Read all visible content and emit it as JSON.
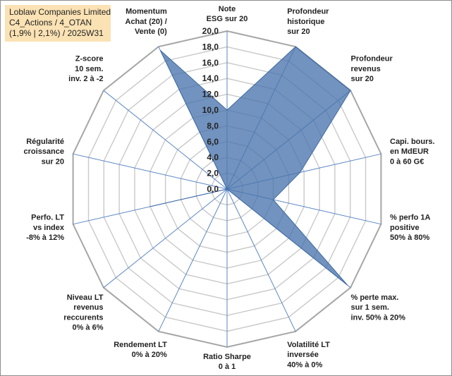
{
  "title_box": {
    "line1": "Loblaw Companies Limited",
    "line2": "C4_Actions / 4_OTAN",
    "line3": "(1,9% | 2,1%) / 2025W31"
  },
  "chart_data": {
    "type": "radar",
    "axes": [
      {
        "label": [
          "Note",
          "ESG sur 20"
        ],
        "value": 10.0
      },
      {
        "label": [
          "Profondeur",
          "historique",
          "sur 20"
        ],
        "value": 20.0
      },
      {
        "label": [
          "Profondeur",
          "revenus",
          "sur 20"
        ],
        "value": 20.0
      },
      {
        "label": [
          "Capi. bours.",
          "en MdEUR",
          "0 à 60 G€"
        ],
        "value": 9.5
      },
      {
        "label": [
          "% perfo 1A",
          "positive",
          "50% à 80%"
        ],
        "value": 6.0
      },
      {
        "label": [
          "% perte max.",
          "sur 1 sem.",
          "inv. 50% à 20%"
        ],
        "value": 19.5
      },
      {
        "label": [
          "Volatilité LT",
          "inversée",
          "40% à 0%"
        ],
        "value": 0.0
      },
      {
        "label": [
          "Ratio Sharpe",
          "0 à 1"
        ],
        "value": 0.0
      },
      {
        "label": [
          "Rendement LT",
          "0% à 20%"
        ],
        "value": 0.0
      },
      {
        "label": [
          "Niveau LT",
          "revenus",
          "reccurents",
          "0% à 6%"
        ],
        "value": 0.0
      },
      {
        "label": [
          "Perfo. LT",
          "vs index",
          "-8% à 12%"
        ],
        "value": 10.0
      },
      {
        "label": [
          "Régularité",
          "croissance",
          "sur 20"
        ],
        "value": 0.0
      },
      {
        "label": [
          "Z-score",
          "10 sem.",
          "inv. 2 à -2"
        ],
        "value": 0.0
      },
      {
        "label": [
          "Momentum",
          "Achat (20) /",
          "Vente (0)"
        ],
        "value": 19.5
      }
    ],
    "rlim": [
      0,
      20
    ],
    "ticks": [
      "0,0",
      "2,0",
      "4,0",
      "6,0",
      "8,0",
      "10,0",
      "12,0",
      "14,0",
      "16,0",
      "18,0",
      "20,0"
    ],
    "grid": true,
    "colors": {
      "fill": "#4a74ad",
      "stroke": "#3f6aa3",
      "grid": "#c9c9c9",
      "spoke": "#5b87c6"
    }
  }
}
